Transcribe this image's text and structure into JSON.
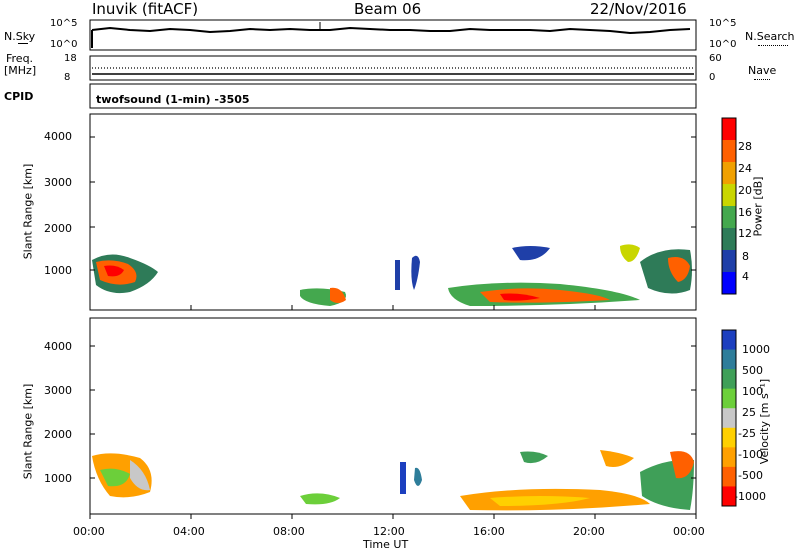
{
  "header": {
    "station": "Inuvik (fitACF)",
    "beam": "Beam 06",
    "date": "22/Nov/2016"
  },
  "top_panel": {
    "nsky_label": "N.Sky",
    "nsearch_label": "N.Search",
    "left_ticks": [
      "10^5",
      "10^0"
    ],
    "right_ticks": [
      "10^5",
      "10^0"
    ]
  },
  "freq_panel": {
    "freq_label": "Freq.",
    "unit_label": "[MHz]",
    "nave_label": "Nave",
    "left_ticks": [
      "18",
      "8"
    ],
    "right_ticks": [
      "60",
      "0"
    ],
    "cpid_label": "CPID",
    "cpid_value": "twofsound (1-min) -3505"
  },
  "chart_data": [
    {
      "type": "heatmap",
      "name": "power",
      "ylabel": "Slant Range [km]",
      "yticks": [
        "1000",
        "2000",
        "3000",
        "4000"
      ],
      "ylim": [
        180,
        4600
      ],
      "colorbar_label": "Power [dB]",
      "colorbar_ticks": [
        "4",
        "8",
        "12",
        "16",
        "20",
        "24",
        "28"
      ],
      "colors": [
        "#0000ff",
        "#1f3fa8",
        "#2e7b58",
        "#44a84e",
        "#c9d600",
        "#f0a000",
        "#ff6000",
        "#ff0000"
      ]
    },
    {
      "type": "heatmap",
      "name": "velocity",
      "ylabel": "Slant Range [km]",
      "yticks": [
        "1000",
        "2000",
        "3000",
        "4000"
      ],
      "ylim": [
        180,
        4600
      ],
      "colorbar_label": "Velocity [m s⁻¹]",
      "colorbar_ticks": [
        "1000",
        "500",
        "100",
        "25",
        "-25",
        "-100",
        "-500",
        "-1000"
      ],
      "colors": [
        "#1c3fbf",
        "#2e7d9a",
        "#3f9f58",
        "#6ccf3a",
        "#c8c8c8",
        "#ffd000",
        "#ffa000",
        "#ff6000",
        "#ff0000"
      ]
    }
  ],
  "xaxis": {
    "ticks": [
      "00:00",
      "04:00",
      "08:00",
      "12:00",
      "16:00",
      "20:00",
      "00:00"
    ],
    "label": "Time UT"
  }
}
